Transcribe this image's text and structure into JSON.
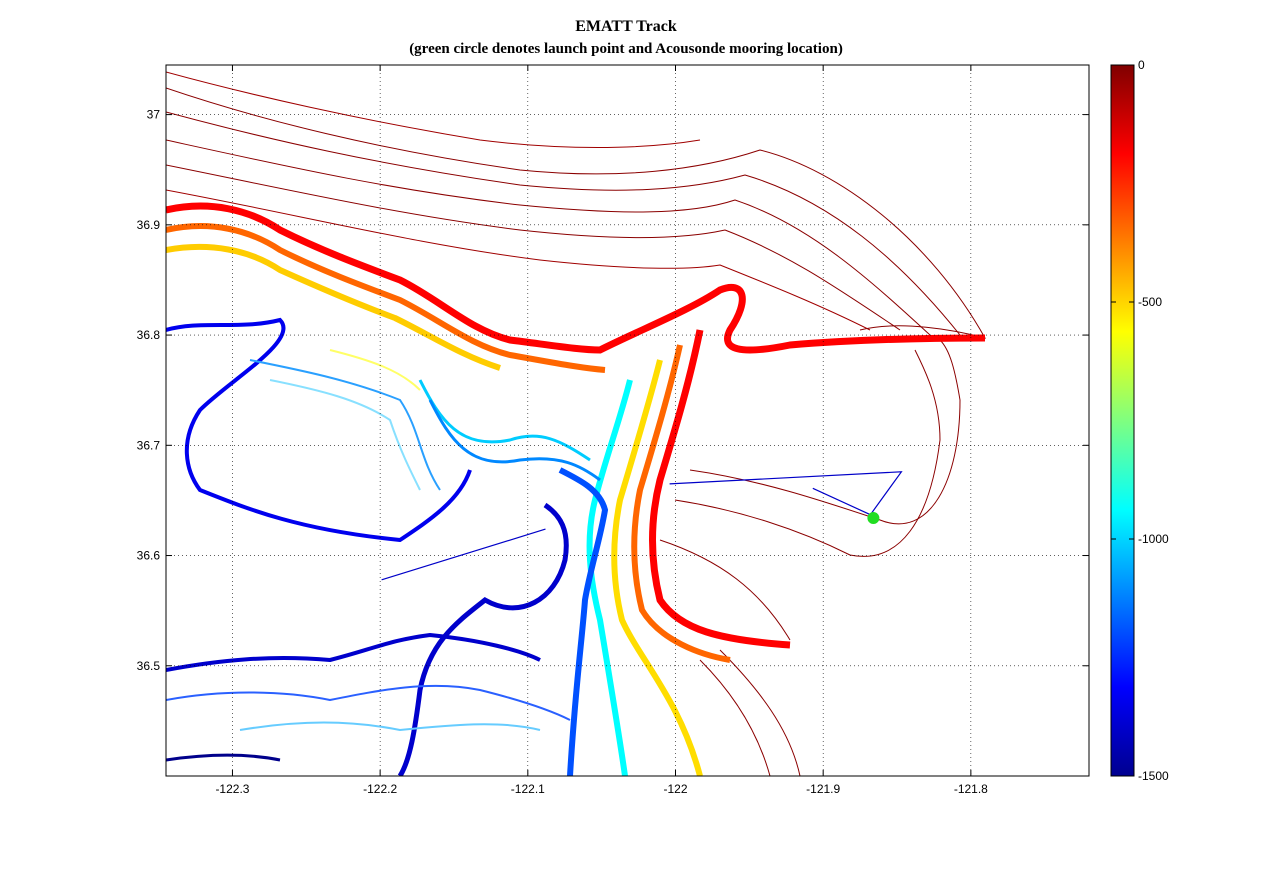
{
  "chart_data": {
    "type": "contour",
    "title": "EMATT Track",
    "subtitle": "(green circle denotes launch point and Acousonde mooring location)",
    "xlabel": "",
    "ylabel": "",
    "xlim": [
      -122.345,
      -121.72
    ],
    "ylim": [
      36.4,
      37.045
    ],
    "xticks": [
      -122.3,
      -122.2,
      -122.1,
      -122.0,
      -121.9,
      -121.8
    ],
    "xtick_labels": [
      "-122.3",
      "-122.2",
      "-122.1",
      "-122",
      "-121.9",
      "-121.8"
    ],
    "yticks": [
      36.5,
      36.6,
      36.7,
      36.8,
      36.9,
      37.0
    ],
    "ytick_labels": [
      "36.5",
      "36.6",
      "36.7",
      "36.8",
      "36.9",
      "37"
    ],
    "grid": true,
    "colorbar": {
      "min": -1500,
      "max": 0,
      "ticks": [
        0,
        -500,
        -1000,
        -1500
      ],
      "tick_labels": [
        "0",
        "-500",
        "-1000",
        "-1500"
      ],
      "colormap": "jet"
    },
    "track_segments": [
      {
        "name": "",
        "color": "#0000c8",
        "points": [
          [
            -122.199,
            36.578
          ],
          [
            -122.088,
            36.624
          ]
        ]
      },
      {
        "name": "",
        "color": "#0000c8",
        "points": [
          [
            -122.004,
            36.665
          ],
          [
            -121.847,
            36.676
          ],
          [
            -121.868,
            36.637
          ],
          [
            -121.907,
            36.661
          ]
        ]
      }
    ],
    "launch_point": {
      "x": -121.866,
      "y": 36.634,
      "color": "#22dd22"
    }
  }
}
